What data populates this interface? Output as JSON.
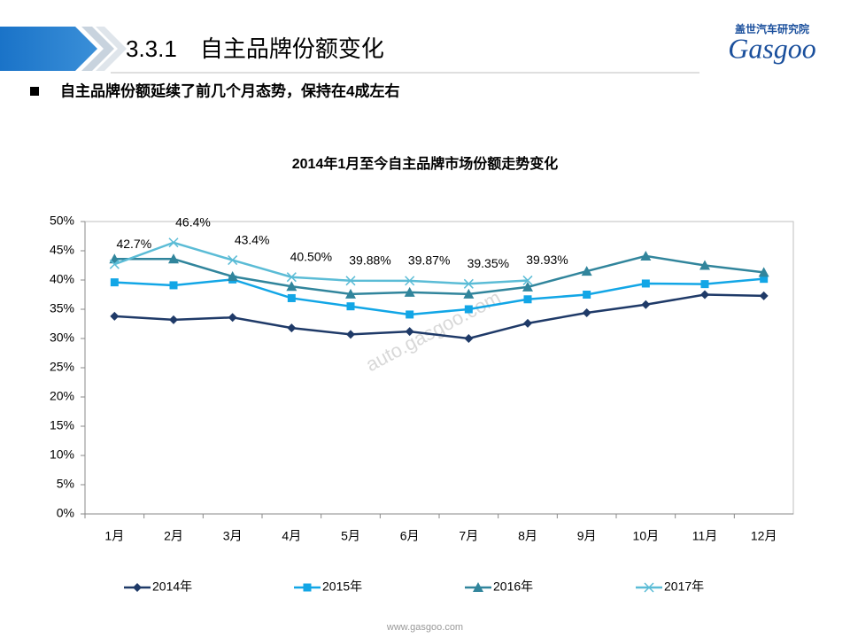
{
  "header": {
    "title": "3.3.1　自主品牌份额变化",
    "logo_cn": "盖世汽车研究院",
    "logo_en": "Gasgoo"
  },
  "bullet": "自主品牌份额延续了前几个月态势，保持在4成左右",
  "watermark": "auto.gasgoo.com",
  "footer": "www.gasgoo.com",
  "chart_data": {
    "type": "line",
    "title": "2014年1月至今自主品牌市场份额走势变化",
    "categories": [
      "1月",
      "2月",
      "3月",
      "4月",
      "5月",
      "6月",
      "7月",
      "8月",
      "9月",
      "10月",
      "11月",
      "12月"
    ],
    "series": [
      {
        "name": "2014年",
        "color": "#1f3a68",
        "marker": "diamond",
        "values": [
          33.8,
          33.2,
          33.6,
          31.8,
          30.7,
          31.2,
          30.0,
          32.6,
          34.4,
          35.8,
          37.5,
          37.3
        ]
      },
      {
        "name": "2015年",
        "color": "#12a6e6",
        "marker": "square",
        "values": [
          39.6,
          39.1,
          40.1,
          36.9,
          35.5,
          34.1,
          35.0,
          36.7,
          37.5,
          39.4,
          39.3,
          40.2
        ]
      },
      {
        "name": "2016年",
        "color": "#31859c",
        "marker": "triangle",
        "values": [
          43.6,
          43.6,
          40.6,
          38.9,
          37.6,
          37.9,
          37.6,
          38.8,
          41.5,
          44.1,
          42.5,
          41.3
        ]
      },
      {
        "name": "2017年",
        "color": "#5bbcd6",
        "marker": "x",
        "values": [
          42.7,
          46.4,
          43.4,
          40.5,
          39.88,
          39.87,
          39.35,
          39.93,
          null,
          null,
          null,
          null
        ],
        "value_labels": [
          "42.7%",
          "46.4%",
          "43.4%",
          "40.50%",
          "39.88%",
          "39.87%",
          "39.35%",
          "39.93%",
          null,
          null,
          null,
          null
        ]
      }
    ],
    "ylim": [
      0,
      50
    ],
    "yticks": [
      {
        "value": 0,
        "label": "0%"
      },
      {
        "value": 5,
        "label": "5%"
      },
      {
        "value": 10,
        "label": "10%"
      },
      {
        "value": 15,
        "label": "15%"
      },
      {
        "value": 20,
        "label": "20%"
      },
      {
        "value": 25,
        "label": "25%"
      },
      {
        "value": 30,
        "label": "30%"
      },
      {
        "value": 35,
        "label": "35%"
      },
      {
        "value": 40,
        "label": "40%"
      },
      {
        "value": 45,
        "label": "45%"
      },
      {
        "value": 50,
        "label": "50%"
      }
    ],
    "grid": false,
    "legend": "bottom"
  }
}
